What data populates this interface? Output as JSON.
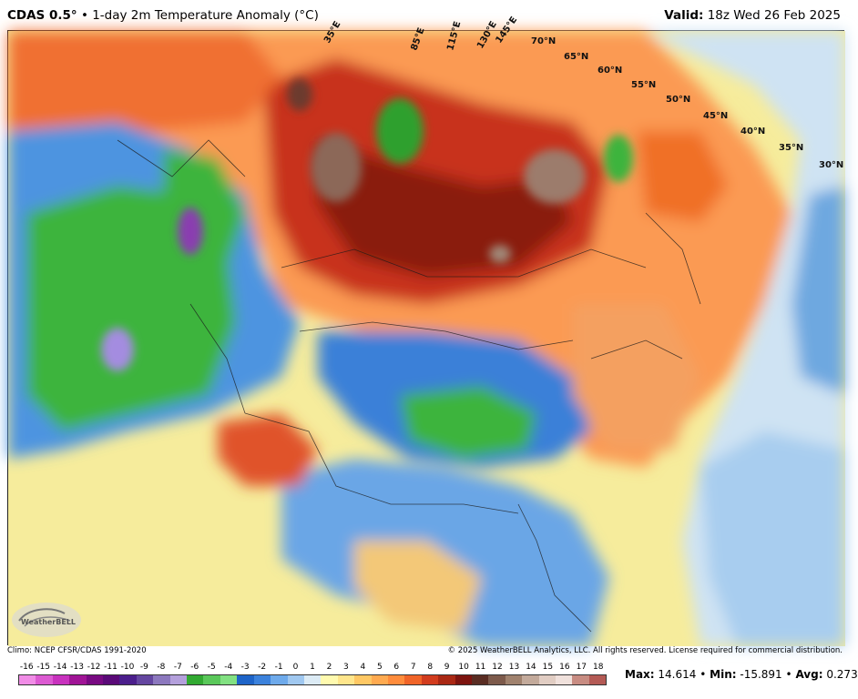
{
  "header": {
    "model": "CDAS 0.5°",
    "separator": "•",
    "product": "1-day 2m Temperature Anomaly (°C)",
    "valid_label": "Valid:",
    "valid_time": "18z Wed 26 Feb 2025"
  },
  "map": {
    "region": "Asia",
    "lon_labels": [
      "35°E",
      "85°E",
      "115°E",
      "130°E",
      "145°E"
    ],
    "lat_labels": [
      "70°N",
      "65°N",
      "60°N",
      "55°N",
      "50°N",
      "45°N",
      "40°N",
      "35°N",
      "30°N"
    ]
  },
  "footer": {
    "climo": "Climo: NCEP CFSR/CDAS 1991-2020",
    "copyright": "© 2025 WeatherBELL Analytics, LLC. All rights reserved. License required for commercial distribution."
  },
  "logo": {
    "text": "WeatherBELL",
    "icon": "swirl-logo-icon"
  },
  "legend": {
    "ticks": [
      "-16",
      "-15",
      "-14",
      "-13",
      "-12",
      "-11",
      "-10",
      "-9",
      "-8",
      "-7",
      "-6",
      "-5",
      "-4",
      "-3",
      "-2",
      "-1",
      "0",
      "1",
      "2",
      "3",
      "4",
      "5",
      "6",
      "7",
      "8",
      "9",
      "10",
      "11",
      "12",
      "13",
      "14",
      "15",
      "16",
      "17",
      "18"
    ],
    "colors": [
      "#f08ce6",
      "#dc5ad2",
      "#c832be",
      "#a01496",
      "#780a82",
      "#5a0a78",
      "#4b1e8c",
      "#6446a0",
      "#8c78be",
      "#b4a0dc",
      "#32aa32",
      "#5ac85a",
      "#82e182",
      "#1e64c8",
      "#3c82dc",
      "#6eaaeb",
      "#a0c8f0",
      "#dcebf5",
      "#fffaaf",
      "#ffe68c",
      "#ffc864",
      "#ffaa50",
      "#ff8c3c",
      "#f06428",
      "#d23c1e",
      "#aa2814",
      "#7d140f",
      "#5a2d23",
      "#7d5a4b",
      "#a0826e",
      "#c3aa9b",
      "#e1cdc3",
      "#f0e1dc",
      "#c88c82",
      "#b45a55"
    ]
  },
  "stats": {
    "max_label": "Max:",
    "max": "14.614",
    "min_label": "Min:",
    "min": "-15.891",
    "avg_label": "Avg:",
    "avg": "0.273",
    "sep": "•"
  }
}
